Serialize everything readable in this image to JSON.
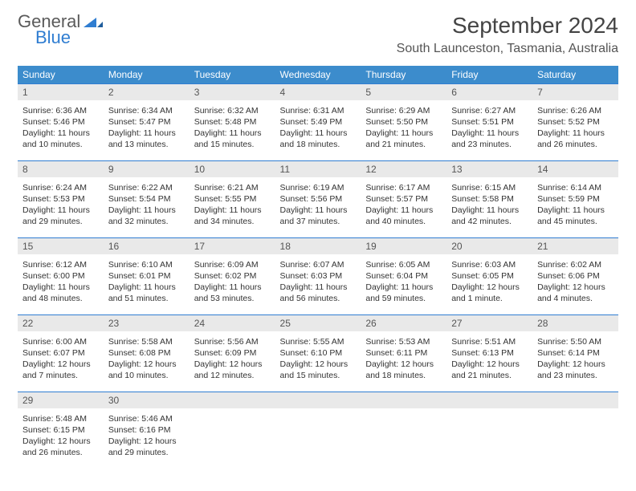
{
  "logo": {
    "general": "General",
    "blue": "Blue"
  },
  "title": "September 2024",
  "location": "South Launceston, Tasmania, Australia",
  "colors": {
    "header_bg": "#3c8ccc",
    "header_text": "#ffffff",
    "daynum_bg": "#e9e9e9",
    "border": "#2f7dd1",
    "text": "#333333",
    "logo_gray": "#5a5a5a",
    "logo_blue": "#2f7dd1"
  },
  "day_headers": [
    "Sunday",
    "Monday",
    "Tuesday",
    "Wednesday",
    "Thursday",
    "Friday",
    "Saturday"
  ],
  "weeks": [
    [
      {
        "n": "1",
        "sr": "Sunrise: 6:36 AM",
        "ss": "Sunset: 5:46 PM",
        "d1": "Daylight: 11 hours",
        "d2": "and 10 minutes."
      },
      {
        "n": "2",
        "sr": "Sunrise: 6:34 AM",
        "ss": "Sunset: 5:47 PM",
        "d1": "Daylight: 11 hours",
        "d2": "and 13 minutes."
      },
      {
        "n": "3",
        "sr": "Sunrise: 6:32 AM",
        "ss": "Sunset: 5:48 PM",
        "d1": "Daylight: 11 hours",
        "d2": "and 15 minutes."
      },
      {
        "n": "4",
        "sr": "Sunrise: 6:31 AM",
        "ss": "Sunset: 5:49 PM",
        "d1": "Daylight: 11 hours",
        "d2": "and 18 minutes."
      },
      {
        "n": "5",
        "sr": "Sunrise: 6:29 AM",
        "ss": "Sunset: 5:50 PM",
        "d1": "Daylight: 11 hours",
        "d2": "and 21 minutes."
      },
      {
        "n": "6",
        "sr": "Sunrise: 6:27 AM",
        "ss": "Sunset: 5:51 PM",
        "d1": "Daylight: 11 hours",
        "d2": "and 23 minutes."
      },
      {
        "n": "7",
        "sr": "Sunrise: 6:26 AM",
        "ss": "Sunset: 5:52 PM",
        "d1": "Daylight: 11 hours",
        "d2": "and 26 minutes."
      }
    ],
    [
      {
        "n": "8",
        "sr": "Sunrise: 6:24 AM",
        "ss": "Sunset: 5:53 PM",
        "d1": "Daylight: 11 hours",
        "d2": "and 29 minutes."
      },
      {
        "n": "9",
        "sr": "Sunrise: 6:22 AM",
        "ss": "Sunset: 5:54 PM",
        "d1": "Daylight: 11 hours",
        "d2": "and 32 minutes."
      },
      {
        "n": "10",
        "sr": "Sunrise: 6:21 AM",
        "ss": "Sunset: 5:55 PM",
        "d1": "Daylight: 11 hours",
        "d2": "and 34 minutes."
      },
      {
        "n": "11",
        "sr": "Sunrise: 6:19 AM",
        "ss": "Sunset: 5:56 PM",
        "d1": "Daylight: 11 hours",
        "d2": "and 37 minutes."
      },
      {
        "n": "12",
        "sr": "Sunrise: 6:17 AM",
        "ss": "Sunset: 5:57 PM",
        "d1": "Daylight: 11 hours",
        "d2": "and 40 minutes."
      },
      {
        "n": "13",
        "sr": "Sunrise: 6:15 AM",
        "ss": "Sunset: 5:58 PM",
        "d1": "Daylight: 11 hours",
        "d2": "and 42 minutes."
      },
      {
        "n": "14",
        "sr": "Sunrise: 6:14 AM",
        "ss": "Sunset: 5:59 PM",
        "d1": "Daylight: 11 hours",
        "d2": "and 45 minutes."
      }
    ],
    [
      {
        "n": "15",
        "sr": "Sunrise: 6:12 AM",
        "ss": "Sunset: 6:00 PM",
        "d1": "Daylight: 11 hours",
        "d2": "and 48 minutes."
      },
      {
        "n": "16",
        "sr": "Sunrise: 6:10 AM",
        "ss": "Sunset: 6:01 PM",
        "d1": "Daylight: 11 hours",
        "d2": "and 51 minutes."
      },
      {
        "n": "17",
        "sr": "Sunrise: 6:09 AM",
        "ss": "Sunset: 6:02 PM",
        "d1": "Daylight: 11 hours",
        "d2": "and 53 minutes."
      },
      {
        "n": "18",
        "sr": "Sunrise: 6:07 AM",
        "ss": "Sunset: 6:03 PM",
        "d1": "Daylight: 11 hours",
        "d2": "and 56 minutes."
      },
      {
        "n": "19",
        "sr": "Sunrise: 6:05 AM",
        "ss": "Sunset: 6:04 PM",
        "d1": "Daylight: 11 hours",
        "d2": "and 59 minutes."
      },
      {
        "n": "20",
        "sr": "Sunrise: 6:03 AM",
        "ss": "Sunset: 6:05 PM",
        "d1": "Daylight: 12 hours",
        "d2": "and 1 minute."
      },
      {
        "n": "21",
        "sr": "Sunrise: 6:02 AM",
        "ss": "Sunset: 6:06 PM",
        "d1": "Daylight: 12 hours",
        "d2": "and 4 minutes."
      }
    ],
    [
      {
        "n": "22",
        "sr": "Sunrise: 6:00 AM",
        "ss": "Sunset: 6:07 PM",
        "d1": "Daylight: 12 hours",
        "d2": "and 7 minutes."
      },
      {
        "n": "23",
        "sr": "Sunrise: 5:58 AM",
        "ss": "Sunset: 6:08 PM",
        "d1": "Daylight: 12 hours",
        "d2": "and 10 minutes."
      },
      {
        "n": "24",
        "sr": "Sunrise: 5:56 AM",
        "ss": "Sunset: 6:09 PM",
        "d1": "Daylight: 12 hours",
        "d2": "and 12 minutes."
      },
      {
        "n": "25",
        "sr": "Sunrise: 5:55 AM",
        "ss": "Sunset: 6:10 PM",
        "d1": "Daylight: 12 hours",
        "d2": "and 15 minutes."
      },
      {
        "n": "26",
        "sr": "Sunrise: 5:53 AM",
        "ss": "Sunset: 6:11 PM",
        "d1": "Daylight: 12 hours",
        "d2": "and 18 minutes."
      },
      {
        "n": "27",
        "sr": "Sunrise: 5:51 AM",
        "ss": "Sunset: 6:13 PM",
        "d1": "Daylight: 12 hours",
        "d2": "and 21 minutes."
      },
      {
        "n": "28",
        "sr": "Sunrise: 5:50 AM",
        "ss": "Sunset: 6:14 PM",
        "d1": "Daylight: 12 hours",
        "d2": "and 23 minutes."
      }
    ],
    [
      {
        "n": "29",
        "sr": "Sunrise: 5:48 AM",
        "ss": "Sunset: 6:15 PM",
        "d1": "Daylight: 12 hours",
        "d2": "and 26 minutes."
      },
      {
        "n": "30",
        "sr": "Sunrise: 5:46 AM",
        "ss": "Sunset: 6:16 PM",
        "d1": "Daylight: 12 hours",
        "d2": "and 29 minutes."
      },
      null,
      null,
      null,
      null,
      null
    ]
  ]
}
